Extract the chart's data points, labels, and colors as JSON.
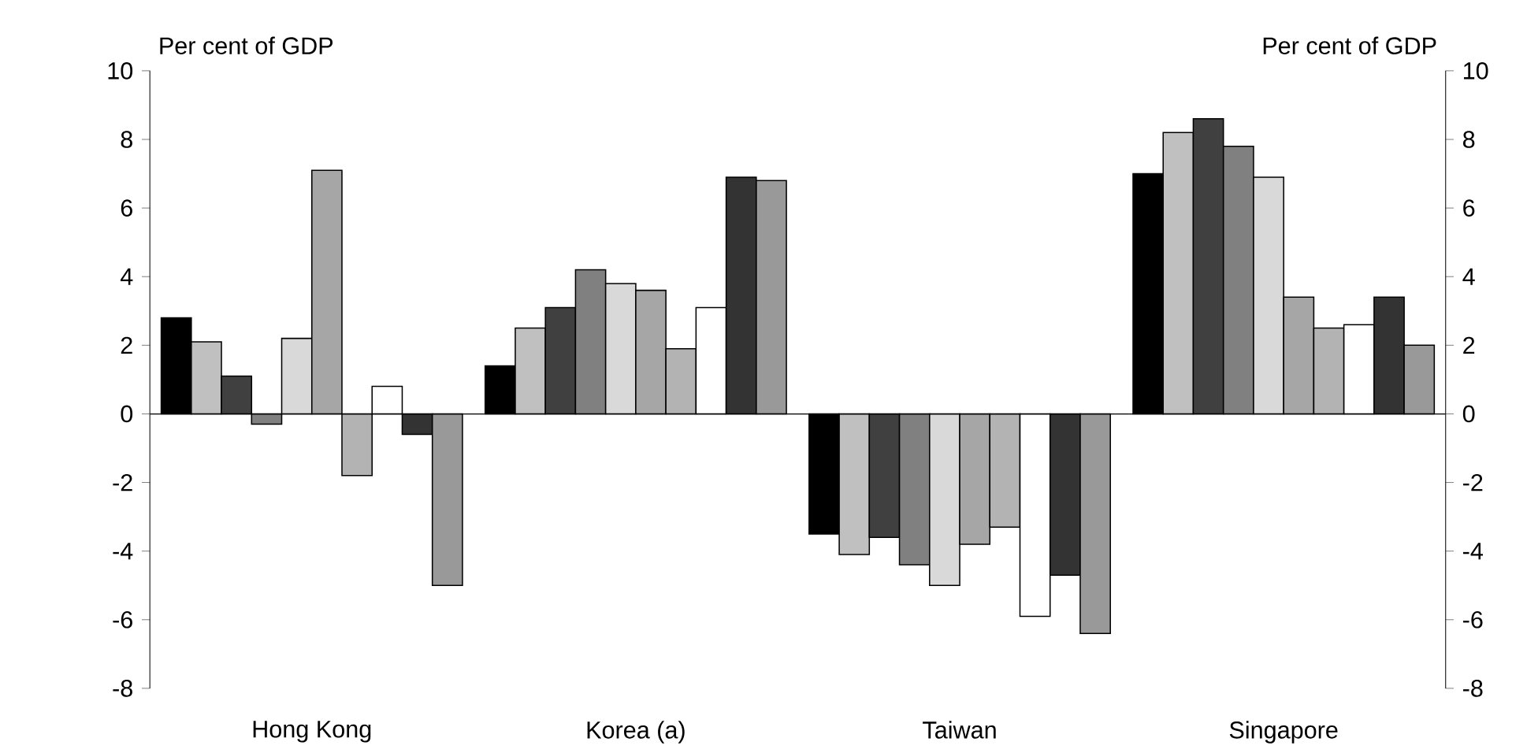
{
  "chart_data": {
    "type": "bar",
    "ylabel": "Per cent of GDP",
    "y2label": "Per cent of GDP",
    "categories": [
      "Hong Kong",
      "Korea (a)",
      "Taiwan",
      "Singapore"
    ],
    "series": [
      {
        "color": "#000000",
        "values": [
          2.8,
          1.4,
          -3.5,
          7.0
        ]
      },
      {
        "color": "#c0c0c0",
        "values": [
          2.1,
          2.5,
          -4.1,
          8.2
        ]
      },
      {
        "color": "#404040",
        "values": [
          1.1,
          3.1,
          -3.6,
          8.6
        ]
      },
      {
        "color": "#808080",
        "values": [
          -0.3,
          4.2,
          -4.4,
          7.8
        ]
      },
      {
        "color": "#d9d9d9",
        "values": [
          2.2,
          3.8,
          -5.0,
          6.9
        ]
      },
      {
        "color": "#a6a6a6",
        "values": [
          7.1,
          3.6,
          -3.8,
          3.4
        ]
      },
      {
        "color": "#b3b3b3",
        "values": [
          -1.8,
          1.9,
          -3.3,
          2.5
        ]
      },
      {
        "color": "#ffffff",
        "values": [
          0.8,
          3.1,
          -5.9,
          2.6
        ]
      },
      {
        "color": "#333333",
        "values": [
          -0.6,
          6.9,
          -4.7,
          3.4
        ]
      },
      {
        "color": "#999999",
        "values": [
          -5.0,
          6.8,
          -6.4,
          2.0
        ]
      }
    ],
    "ylim": [
      -8,
      10
    ],
    "yticks": [
      -8,
      -6,
      -4,
      -2,
      0,
      2,
      4,
      6,
      8,
      10
    ],
    "y2lim": [
      -8,
      10
    ],
    "y2ticks": [
      -8,
      -6,
      -4,
      -2,
      0,
      2,
      4,
      6,
      8,
      10
    ]
  }
}
